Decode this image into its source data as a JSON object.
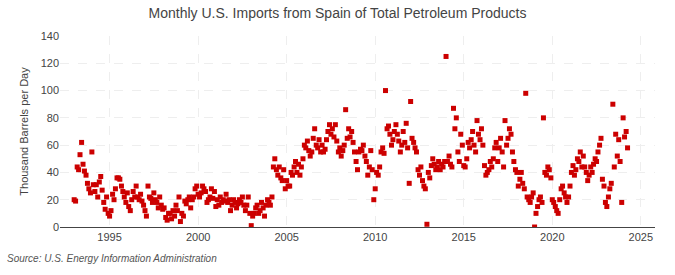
{
  "chart_data": {
    "type": "scatter",
    "title": "Monthly U.S. Imports from Spain of Total Petroleum Products",
    "ylabel": "Thousand Barrels per Day",
    "annotations": [
      "Source: U.S. Energy Information Administration"
    ],
    "color": "#cc0000",
    "marker": "square",
    "grid": true,
    "xlim": [
      1992.2,
      2025.8
    ],
    "ylim": [
      0,
      140
    ],
    "xticks": [
      1995,
      2000,
      2005,
      2010,
      2015,
      2020,
      2025
    ],
    "yticks": [
      0,
      20,
      40,
      60,
      80,
      100,
      120,
      140
    ],
    "x": [
      1993.0,
      1993.08,
      1993.17,
      1993.25,
      1993.33,
      1993.42,
      1993.5,
      1993.58,
      1993.67,
      1993.75,
      1993.83,
      1993.92,
      1994.0,
      1994.08,
      1994.17,
      1994.25,
      1994.33,
      1994.42,
      1994.5,
      1994.58,
      1994.67,
      1994.75,
      1994.83,
      1994.92,
      1995.0,
      1995.08,
      1995.17,
      1995.25,
      1995.33,
      1995.42,
      1995.5,
      1995.58,
      1995.67,
      1995.75,
      1995.83,
      1995.92,
      1996.0,
      1996.08,
      1996.17,
      1996.25,
      1996.33,
      1996.42,
      1996.5,
      1996.58,
      1996.67,
      1996.75,
      1996.83,
      1996.92,
      1997.0,
      1997.08,
      1997.17,
      1997.25,
      1997.33,
      1997.42,
      1997.5,
      1997.58,
      1997.67,
      1997.75,
      1997.83,
      1997.92,
      1998.0,
      1998.08,
      1998.17,
      1998.25,
      1998.33,
      1998.42,
      1998.5,
      1998.58,
      1998.67,
      1998.75,
      1998.83,
      1998.92,
      1999.0,
      1999.08,
      1999.17,
      1999.25,
      1999.33,
      1999.42,
      1999.5,
      1999.58,
      1999.67,
      1999.75,
      1999.83,
      1999.92,
      2000.0,
      2000.08,
      2000.17,
      2000.25,
      2000.33,
      2000.42,
      2000.5,
      2000.58,
      2000.67,
      2000.75,
      2000.83,
      2000.92,
      2001.0,
      2001.08,
      2001.17,
      2001.25,
      2001.33,
      2001.42,
      2001.5,
      2001.58,
      2001.67,
      2001.75,
      2001.83,
      2001.92,
      2002.0,
      2002.08,
      2002.17,
      2002.25,
      2002.33,
      2002.42,
      2002.5,
      2002.58,
      2002.67,
      2002.75,
      2002.83,
      2002.92,
      2003.0,
      2003.08,
      2003.17,
      2003.25,
      2003.33,
      2003.42,
      2003.5,
      2003.58,
      2003.67,
      2003.75,
      2003.83,
      2003.92,
      2004.0,
      2004.08,
      2004.17,
      2004.25,
      2004.33,
      2004.42,
      2004.5,
      2004.58,
      2004.67,
      2004.75,
      2004.83,
      2004.92,
      2005.0,
      2005.08,
      2005.17,
      2005.25,
      2005.33,
      2005.42,
      2005.5,
      2005.58,
      2005.67,
      2005.75,
      2005.83,
      2005.92,
      2006.0,
      2006.08,
      2006.17,
      2006.25,
      2006.33,
      2006.42,
      2006.5,
      2006.58,
      2006.67,
      2006.75,
      2006.83,
      2006.92,
      2007.0,
      2007.08,
      2007.17,
      2007.25,
      2007.33,
      2007.42,
      2007.5,
      2007.58,
      2007.67,
      2007.75,
      2007.83,
      2007.92,
      2008.0,
      2008.08,
      2008.17,
      2008.25,
      2008.33,
      2008.42,
      2008.5,
      2008.58,
      2008.67,
      2008.75,
      2008.83,
      2008.92,
      2009.0,
      2009.08,
      2009.17,
      2009.25,
      2009.33,
      2009.42,
      2009.5,
      2009.58,
      2009.67,
      2009.75,
      2009.83,
      2009.92,
      2010.0,
      2010.08,
      2010.17,
      2010.25,
      2010.33,
      2010.42,
      2010.5,
      2010.58,
      2010.67,
      2010.75,
      2010.83,
      2010.92,
      2011.0,
      2011.08,
      2011.17,
      2011.25,
      2011.33,
      2011.42,
      2011.5,
      2011.58,
      2011.67,
      2011.75,
      2011.83,
      2011.92,
      2012.0,
      2012.08,
      2012.17,
      2012.25,
      2012.33,
      2012.42,
      2012.5,
      2012.58,
      2012.67,
      2012.75,
      2012.83,
      2012.92,
      2013.0,
      2013.08,
      2013.17,
      2013.25,
      2013.33,
      2013.42,
      2013.5,
      2013.58,
      2013.67,
      2013.75,
      2013.83,
      2013.92,
      2014.0,
      2014.08,
      2014.17,
      2014.25,
      2014.33,
      2014.42,
      2014.5,
      2014.58,
      2014.67,
      2014.75,
      2014.83,
      2014.92,
      2015.0,
      2015.08,
      2015.17,
      2015.25,
      2015.33,
      2015.42,
      2015.5,
      2015.58,
      2015.67,
      2015.75,
      2015.83,
      2015.92,
      2016.0,
      2016.08,
      2016.17,
      2016.25,
      2016.33,
      2016.42,
      2016.5,
      2016.58,
      2016.67,
      2016.75,
      2016.83,
      2016.92,
      2017.0,
      2017.08,
      2017.17,
      2017.25,
      2017.33,
      2017.42,
      2017.5,
      2017.58,
      2017.67,
      2017.75,
      2017.83,
      2017.92,
      2018.0,
      2018.08,
      2018.17,
      2018.25,
      2018.33,
      2018.42,
      2018.5,
      2018.58,
      2018.67,
      2018.75,
      2018.83,
      2018.92,
      2019.0,
      2019.08,
      2019.17,
      2019.25,
      2019.33,
      2019.42,
      2019.5,
      2019.58,
      2019.67,
      2019.75,
      2019.83,
      2019.92,
      2020.0,
      2020.08,
      2020.17,
      2020.25,
      2020.33,
      2020.42,
      2020.5,
      2020.58,
      2020.67,
      2020.75,
      2020.83,
      2020.92,
      2021.0,
      2021.08,
      2021.17,
      2021.25,
      2021.33,
      2021.42,
      2021.5,
      2021.58,
      2021.67,
      2021.75,
      2021.83,
      2021.92,
      2022.0,
      2022.08,
      2022.17,
      2022.25,
      2022.33,
      2022.42,
      2022.5,
      2022.58,
      2022.67,
      2022.75,
      2022.83,
      2022.92,
      2023.0,
      2023.08,
      2023.17,
      2023.25,
      2023.33,
      2023.42,
      2023.5,
      2023.58,
      2023.67,
      2023.75,
      2023.83,
      2023.92,
      2024.0,
      2024.08,
      2024.17,
      2024.25
    ],
    "values": [
      20,
      19,
      44,
      42,
      53,
      62,
      46,
      41,
      38,
      32,
      28,
      25,
      55,
      31,
      26,
      31,
      22,
      33,
      37,
      27,
      18,
      13,
      22,
      10,
      8,
      12,
      24,
      20,
      28,
      36,
      36,
      35,
      30,
      26,
      22,
      18,
      25,
      15,
      12,
      20,
      26,
      22,
      30,
      22,
      20,
      24,
      19,
      16,
      12,
      8,
      30,
      22,
      21,
      18,
      25,
      20,
      18,
      14,
      22,
      16,
      13,
      14,
      7,
      5,
      10,
      10,
      6,
      12,
      8,
      16,
      12,
      22,
      4,
      10,
      8,
      19,
      17,
      20,
      22,
      14,
      20,
      22,
      28,
      30,
      24,
      22,
      25,
      30,
      28,
      26,
      18,
      20,
      22,
      28,
      21,
      26,
      15,
      20,
      16,
      22,
      18,
      20,
      19,
      24,
      18,
      20,
      12,
      16,
      20,
      18,
      14,
      17,
      20,
      18,
      22,
      16,
      12,
      16,
      22,
      10,
      1,
      8,
      10,
      14,
      16,
      10,
      12,
      18,
      14,
      8,
      16,
      20,
      18,
      16,
      22,
      44,
      50,
      42,
      38,
      44,
      36,
      34,
      42,
      28,
      34,
      30,
      30,
      40,
      38,
      44,
      48,
      40,
      46,
      38,
      44,
      50,
      60,
      58,
      63,
      56,
      52,
      55,
      65,
      72,
      60,
      58,
      64,
      55,
      60,
      55,
      57,
      64,
      70,
      75,
      68,
      72,
      66,
      75,
      63,
      55,
      58,
      52,
      56,
      60,
      86,
      65,
      72,
      66,
      70,
      62,
      55,
      48,
      42,
      55,
      57,
      56,
      60,
      52,
      48,
      38,
      44,
      56,
      42,
      20,
      28,
      40,
      38,
      44,
      55,
      58,
      54,
      100,
      72,
      74,
      68,
      60,
      64,
      70,
      75,
      68,
      63,
      55,
      60,
      70,
      62,
      76,
      58,
      32,
      92,
      65,
      62,
      58,
      55,
      42,
      38,
      44,
      34,
      30,
      28,
      2,
      40,
      36,
      45,
      50,
      46,
      42,
      44,
      48,
      42,
      46,
      44,
      48,
      125,
      48,
      52,
      46,
      44,
      87,
      72,
      80,
      55,
      48,
      68,
      60,
      45,
      44,
      50,
      62,
      58,
      64,
      70,
      60,
      55,
      78,
      68,
      64,
      72,
      60,
      45,
      38,
      40,
      42,
      48,
      44,
      50,
      58,
      62,
      48,
      58,
      65,
      55,
      44,
      78,
      60,
      65,
      72,
      68,
      55,
      48,
      42,
      40,
      30,
      35,
      40,
      32,
      28,
      98,
      22,
      20,
      18,
      22,
      25,
      0,
      10,
      15,
      20,
      22,
      18,
      80,
      40,
      38,
      44,
      42,
      36,
      20,
      18,
      15,
      12,
      10,
      20,
      28,
      30,
      25,
      22,
      18,
      22,
      30,
      40,
      45,
      38,
      42,
      50,
      48,
      55,
      44,
      52,
      44,
      40,
      34,
      38,
      44,
      40,
      46,
      50,
      48,
      55,
      60,
      65,
      35,
      30,
      18,
      15,
      22,
      28,
      32,
      90,
      44,
      68,
      52,
      64,
      48,
      18,
      80,
      66,
      70,
      58
    ]
  }
}
